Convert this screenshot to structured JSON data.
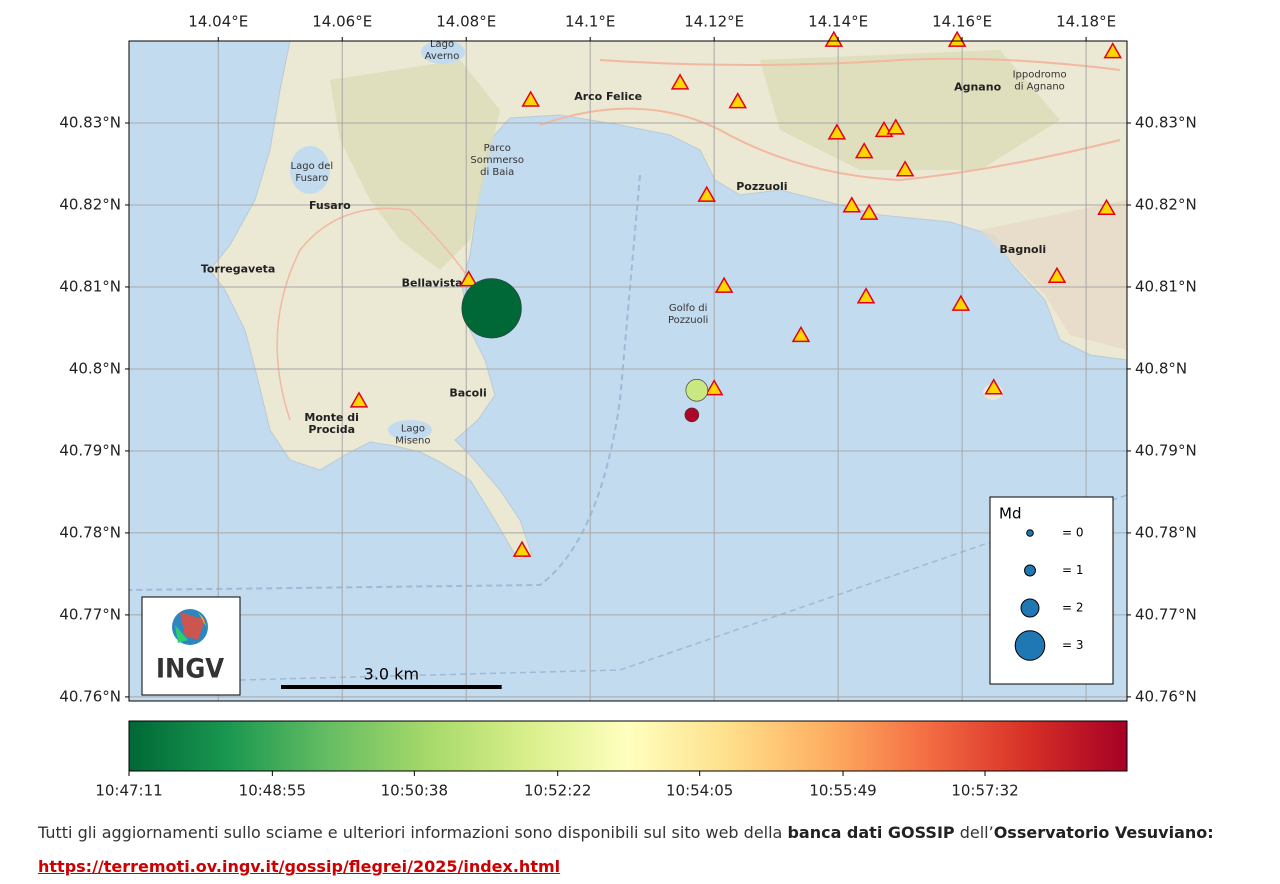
{
  "map": {
    "xlim": [
      14.0256,
      14.1866
    ],
    "ylim": [
      40.7595,
      40.84
    ],
    "xticks": [
      {
        "value": 14.04,
        "label": "14.04°E"
      },
      {
        "value": 14.06,
        "label": "14.06°E"
      },
      {
        "value": 14.08,
        "label": "14.08°E"
      },
      {
        "value": 14.1,
        "label": "14.1°E"
      },
      {
        "value": 14.12,
        "label": "14.12°E"
      },
      {
        "value": 14.14,
        "label": "14.14°E"
      },
      {
        "value": 14.16,
        "label": "14.16°E"
      },
      {
        "value": 14.18,
        "label": "14.18°E"
      }
    ],
    "yticks": [
      {
        "value": 40.76,
        "label": "40.76°N"
      },
      {
        "value": 40.77,
        "label": "40.77°N"
      },
      {
        "value": 40.78,
        "label": "40.78°N"
      },
      {
        "value": 40.79,
        "label": "40.79°N"
      },
      {
        "value": 40.8,
        "label": "40.8°N"
      },
      {
        "value": 40.81,
        "label": "40.81°N"
      },
      {
        "value": 40.82,
        "label": "40.82°N"
      },
      {
        "value": 40.83,
        "label": "40.83°N"
      }
    ],
    "grid": true,
    "places": [
      {
        "lines": [
          "Pozzuoli"
        ],
        "lon": 14.1277,
        "lat": 40.8222,
        "bold": true
      },
      {
        "lines": [
          "Bacoli"
        ],
        "lon": 14.0803,
        "lat": 40.797,
        "bold": true
      },
      {
        "lines": [
          "Bellavista"
        ],
        "lon": 14.0745,
        "lat": 40.8104,
        "bold": true
      },
      {
        "lines": [
          "Fusaro"
        ],
        "lon": 14.058,
        "lat": 40.8199,
        "bold": true
      },
      {
        "lines": [
          "Torregaveta"
        ],
        "lon": 14.0432,
        "lat": 40.8121,
        "bold": true
      },
      {
        "lines": [
          "Monte di",
          "Procida"
        ],
        "lon": 14.0583,
        "lat": 40.7933,
        "bold": true
      },
      {
        "lines": [
          "Lago del",
          "Fusaro"
        ],
        "lon": 14.0551,
        "lat": 40.824,
        "bold": false
      },
      {
        "lines": [
          "Lago",
          "Miseno"
        ],
        "lon": 14.0714,
        "lat": 40.792,
        "bold": false
      },
      {
        "lines": [
          "Golfo di",
          "Pozzuoli"
        ],
        "lon": 14.1158,
        "lat": 40.8067,
        "bold": false
      },
      {
        "lines": [
          "Parco",
          "Sommerso",
          "di Baia"
        ],
        "lon": 14.085,
        "lat": 40.8255,
        "bold": false
      },
      {
        "lines": [
          "Lago",
          "Averno"
        ],
        "lon": 14.0761,
        "lat": 40.8389,
        "bold": false
      },
      {
        "lines": [
          "Agnano"
        ],
        "lon": 14.1625,
        "lat": 40.8343,
        "bold": true
      },
      {
        "lines": [
          "Bagnoli"
        ],
        "lon": 14.1698,
        "lat": 40.8145,
        "bold": true
      },
      {
        "lines": [
          "Arco Felice"
        ],
        "lon": 14.1029,
        "lat": 40.8332,
        "bold": true
      },
      {
        "lines": [
          "Ippodromo",
          "di Agnano"
        ],
        "lon": 14.1725,
        "lat": 40.8352,
        "bold": false
      }
    ],
    "stations": {
      "fill": "#ffd700",
      "stroke": "#e3001b",
      "lon": [
        14.0904,
        14.1145,
        14.1238,
        14.1398,
        14.1442,
        14.1474,
        14.1493,
        14.1508,
        14.1393,
        14.1592,
        14.1843,
        14.1188,
        14.1422,
        14.145,
        14.1833,
        14.0804,
        14.1216,
        14.1445,
        14.1598,
        14.1753,
        14.134,
        14.12,
        14.1651,
        14.0627,
        14.089
      ],
      "lat": [
        40.8328,
        40.8349,
        40.8326,
        40.8288,
        40.8265,
        40.8291,
        40.8294,
        40.8243,
        40.8401,
        40.8401,
        40.8387,
        40.8212,
        40.8199,
        40.819,
        40.8196,
        40.8109,
        40.8101,
        40.8088,
        40.8079,
        40.8113,
        40.8041,
        40.7976,
        40.7977,
        40.7961,
        40.7779
      ]
    },
    "events": [
      {
        "time": "10:47:11",
        "lon": 14.0841,
        "lat": 40.8074,
        "md": 4.4
      },
      {
        "time": "10:51:39",
        "lon": 14.1172,
        "lat": 40.7974,
        "md": 2.4
      },
      {
        "time": "10:59:05",
        "lon": 14.1164,
        "lat": 40.7944,
        "md": 1.5
      }
    ],
    "legend": {
      "title": "Md",
      "color": "#1f77b4",
      "entries": [
        {
          "value": 0,
          "label": "= 0"
        },
        {
          "value": 1,
          "label": "= 1"
        },
        {
          "value": 2,
          "label": "= 2"
        },
        {
          "value": 3,
          "label": "= 3"
        }
      ]
    },
    "scale_bar": {
      "km": 3,
      "label": "3.0 km"
    },
    "logo": "INGV",
    "colorbar": {
      "lim": [
        "10:47:11",
        "10:59:15"
      ],
      "ticks": [
        "10:47:11",
        "10:48:55",
        "10:50:38",
        "10:52:22",
        "10:54:05",
        "10:55:49",
        "10:57:32"
      ],
      "colormap": [
        "#006837",
        "#1a9850",
        "#66bd63",
        "#a6d96a",
        "#d9ef8b",
        "#ffffbf",
        "#fee08b",
        "#fdae61",
        "#f46d43",
        "#d73027",
        "#a50026"
      ]
    }
  },
  "caption": {
    "text1": "Tutti gli aggiornamenti sullo sciame e ulteriori informazioni sono disponibili sul sito web della ",
    "bold1": "banca dati GOSSIP",
    "text2": " dell’",
    "bold2": "Osservatorio Vesuviano:",
    "link": "https://terremoti.ov.ingv.it/gossip/flegrei/2025/index.html"
  }
}
